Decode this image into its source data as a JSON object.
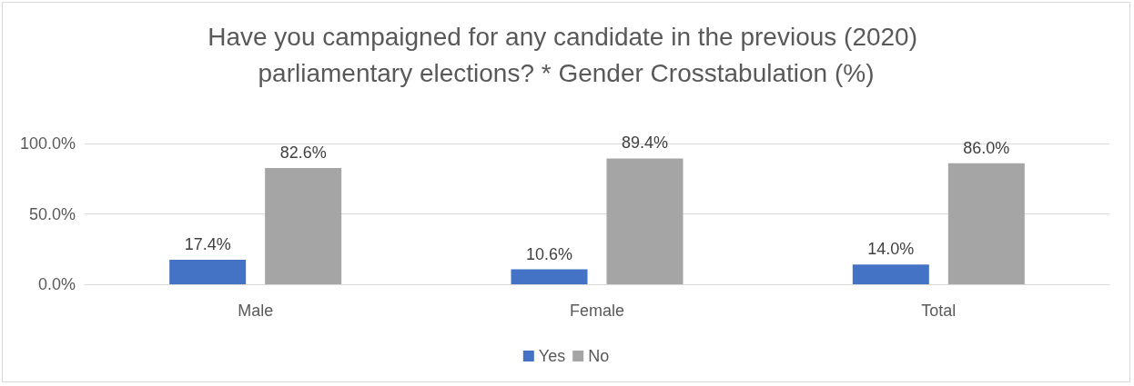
{
  "chart_data": {
    "type": "bar",
    "title": "Have you campaigned for any candidate in the previous (2020) parliamentary elections? * Gender Crosstabulation (%)",
    "categories": [
      "Male",
      "Female",
      "Total"
    ],
    "series": [
      {
        "name": "Yes",
        "color": "#4472c4",
        "values": [
          17.4,
          10.6,
          14.0
        ],
        "value_labels": [
          "17.4%",
          "10.6%",
          "14.0%"
        ]
      },
      {
        "name": "No",
        "color": "#a5a5a5",
        "values": [
          82.6,
          89.4,
          86.0
        ],
        "value_labels": [
          "82.6%",
          "89.4%",
          "86.0%"
        ]
      }
    ],
    "ylim": [
      0,
      100
    ],
    "yticks": [
      {
        "value": 0,
        "label": "0.0%"
      },
      {
        "value": 50,
        "label": "50.0%"
      },
      {
        "value": 100,
        "label": "100.0%"
      }
    ],
    "grid": "y",
    "legend": "bottom"
  }
}
